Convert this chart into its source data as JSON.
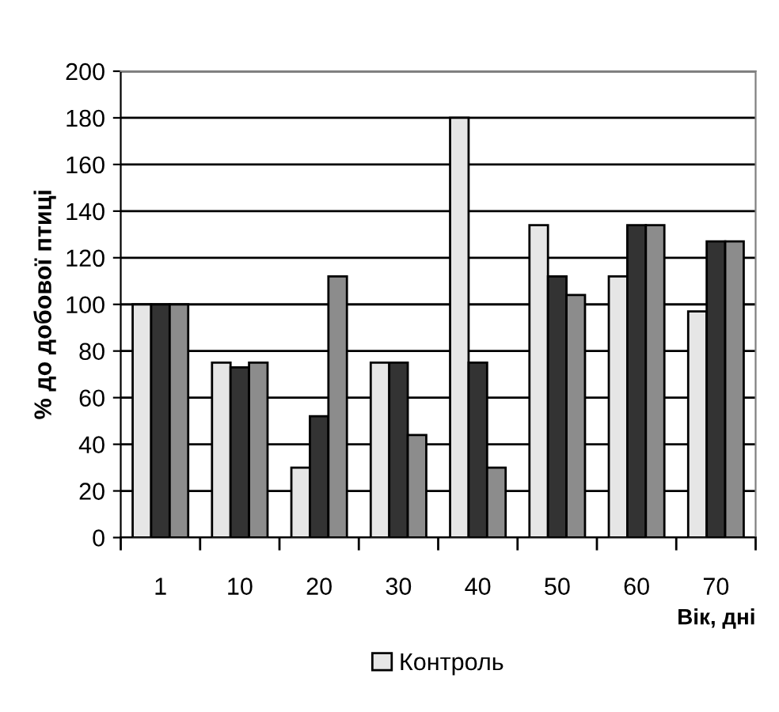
{
  "chart_data": {
    "type": "bar",
    "xlabel": "Вік, дні",
    "ylabel": "% до добової птиці",
    "categories": [
      "1",
      "10",
      "20",
      "30",
      "40",
      "50",
      "60",
      "70"
    ],
    "series": [
      {
        "name": "Контроль",
        "color": "#e6e6e6",
        "values": [
          100,
          75,
          30,
          75,
          180,
          134,
          112,
          97
        ]
      },
      {
        "color": "#333333",
        "values": [
          100,
          73,
          52,
          75,
          75,
          112,
          134,
          127
        ]
      },
      {
        "color": "#8c8c8c",
        "values": [
          100,
          75,
          112,
          44,
          30,
          104,
          134,
          127
        ]
      }
    ],
    "ylim": [
      0,
      200
    ],
    "yticks": [
      0,
      20,
      40,
      60,
      80,
      100,
      120,
      140,
      160,
      180,
      200
    ],
    "grid": "y",
    "legend": "bottom"
  }
}
